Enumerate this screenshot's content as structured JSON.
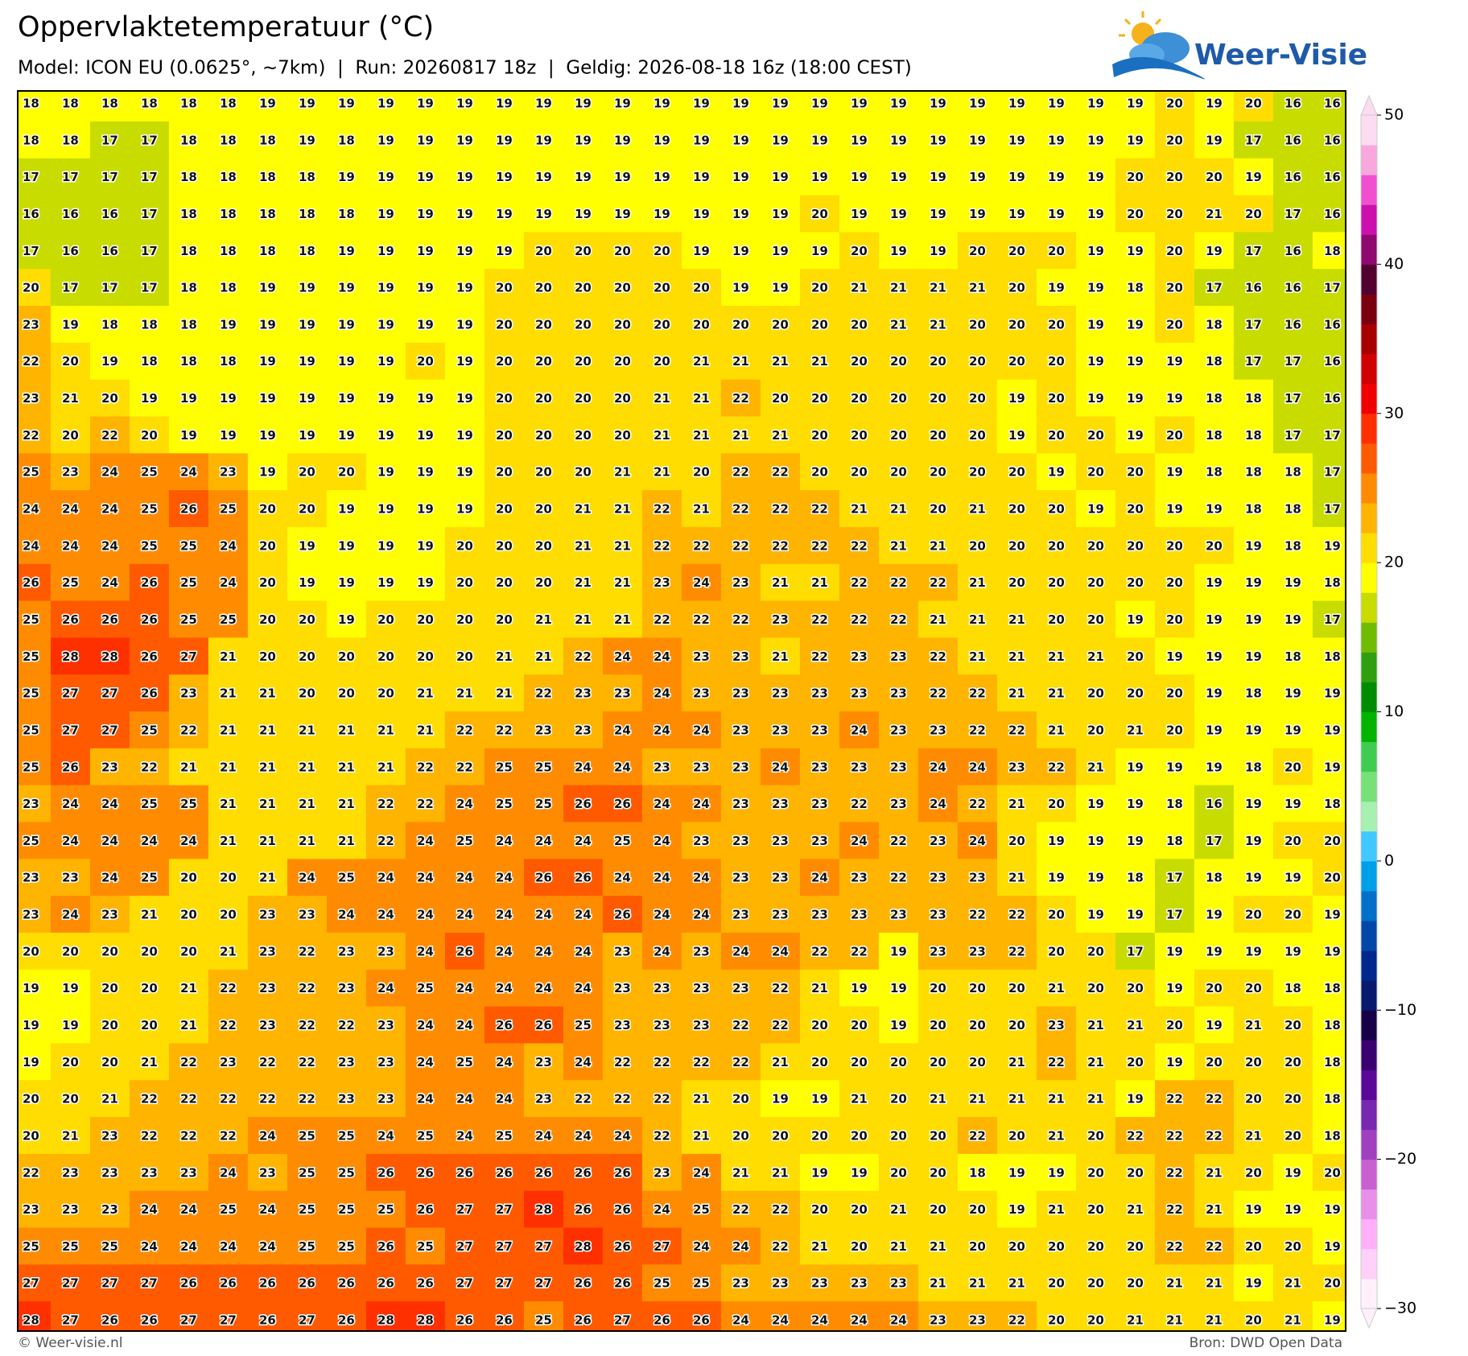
{
  "header": {
    "title": "Oppervlaktetemperatuur (°C)",
    "subtitle": "Model: ICON EU (0.0625°, ~7km)  |  Run: 20260817 18z  |  Geldig: 2026-08-18 16z (18:00 CEST)",
    "logo": "Weer-Visie"
  },
  "map": {
    "rows": [
      [
        18,
        18,
        18,
        18,
        18,
        18,
        19,
        19,
        19,
        19,
        19,
        19,
        19,
        19,
        19,
        19,
        19,
        19,
        19,
        19,
        19,
        19,
        19,
        19,
        19,
        19,
        19,
        19,
        19,
        20,
        19,
        20,
        16,
        16
      ],
      [
        18,
        18,
        17,
        17,
        18,
        18,
        18,
        19,
        18,
        19,
        19,
        19,
        19,
        19,
        19,
        19,
        19,
        19,
        19,
        19,
        19,
        19,
        19,
        19,
        19,
        19,
        19,
        19,
        19,
        20,
        19,
        17,
        16,
        16
      ],
      [
        17,
        17,
        17,
        17,
        18,
        18,
        18,
        18,
        19,
        19,
        19,
        19,
        19,
        19,
        19,
        19,
        19,
        19,
        19,
        19,
        19,
        19,
        19,
        19,
        19,
        19,
        19,
        19,
        20,
        20,
        20,
        19,
        16,
        16
      ],
      [
        16,
        16,
        16,
        17,
        18,
        18,
        18,
        18,
        18,
        19,
        19,
        19,
        19,
        19,
        19,
        19,
        19,
        19,
        19,
        19,
        20,
        19,
        19,
        19,
        19,
        19,
        19,
        19,
        20,
        20,
        21,
        20,
        17,
        16
      ],
      [
        17,
        16,
        16,
        17,
        18,
        18,
        18,
        18,
        19,
        19,
        19,
        19,
        19,
        20,
        20,
        20,
        20,
        19,
        19,
        19,
        19,
        20,
        19,
        19,
        20,
        20,
        20,
        19,
        19,
        20,
        19,
        17,
        16,
        18
      ],
      [
        20,
        17,
        17,
        17,
        18,
        18,
        19,
        19,
        19,
        19,
        19,
        19,
        20,
        20,
        20,
        20,
        20,
        20,
        19,
        19,
        20,
        21,
        21,
        21,
        21,
        20,
        19,
        19,
        18,
        20,
        17,
        16,
        16,
        17
      ],
      [
        23,
        19,
        18,
        18,
        18,
        19,
        19,
        19,
        19,
        19,
        19,
        19,
        20,
        20,
        20,
        20,
        20,
        20,
        20,
        20,
        20,
        20,
        21,
        21,
        20,
        20,
        20,
        19,
        19,
        20,
        18,
        17,
        16,
        16
      ],
      [
        22,
        20,
        19,
        18,
        18,
        18,
        19,
        19,
        19,
        19,
        20,
        19,
        20,
        20,
        20,
        20,
        20,
        21,
        21,
        21,
        21,
        20,
        20,
        20,
        20,
        20,
        20,
        19,
        19,
        19,
        18,
        17,
        17,
        16
      ],
      [
        23,
        21,
        20,
        19,
        19,
        19,
        19,
        19,
        19,
        19,
        19,
        19,
        20,
        20,
        20,
        20,
        21,
        21,
        22,
        20,
        20,
        20,
        20,
        20,
        20,
        19,
        20,
        19,
        19,
        19,
        18,
        18,
        17,
        16
      ],
      [
        22,
        20,
        22,
        20,
        19,
        19,
        19,
        19,
        19,
        19,
        19,
        19,
        20,
        20,
        20,
        20,
        21,
        21,
        21,
        21,
        20,
        20,
        20,
        20,
        20,
        19,
        20,
        20,
        19,
        20,
        18,
        18,
        17,
        17
      ],
      [
        25,
        23,
        24,
        25,
        24,
        23,
        19,
        20,
        20,
        19,
        19,
        19,
        20,
        20,
        20,
        21,
        21,
        20,
        22,
        22,
        20,
        20,
        20,
        20,
        20,
        20,
        19,
        20,
        20,
        19,
        18,
        18,
        18,
        17
      ],
      [
        24,
        24,
        24,
        25,
        26,
        25,
        20,
        20,
        19,
        19,
        19,
        19,
        20,
        20,
        21,
        21,
        22,
        21,
        22,
        22,
        22,
        21,
        21,
        20,
        21,
        20,
        20,
        19,
        20,
        19,
        19,
        18,
        18,
        17
      ],
      [
        24,
        24,
        24,
        25,
        25,
        24,
        20,
        19,
        19,
        19,
        19,
        20,
        20,
        20,
        21,
        21,
        22,
        22,
        22,
        22,
        22,
        22,
        21,
        21,
        20,
        20,
        20,
        20,
        20,
        20,
        20,
        19,
        18,
        19
      ],
      [
        26,
        25,
        24,
        26,
        25,
        24,
        20,
        19,
        19,
        19,
        19,
        20,
        20,
        20,
        21,
        21,
        23,
        24,
        23,
        21,
        21,
        22,
        22,
        22,
        21,
        20,
        20,
        20,
        20,
        20,
        19,
        19,
        19,
        18
      ],
      [
        25,
        26,
        26,
        26,
        25,
        25,
        20,
        20,
        19,
        20,
        20,
        20,
        20,
        21,
        21,
        21,
        22,
        22,
        22,
        23,
        22,
        22,
        22,
        21,
        21,
        21,
        20,
        20,
        19,
        20,
        19,
        19,
        19,
        17
      ],
      [
        25,
        28,
        28,
        26,
        27,
        21,
        20,
        20,
        20,
        20,
        20,
        20,
        21,
        21,
        22,
        24,
        24,
        23,
        23,
        21,
        22,
        23,
        23,
        22,
        21,
        21,
        21,
        21,
        20,
        19,
        19,
        19,
        18,
        18
      ],
      [
        25,
        27,
        27,
        26,
        23,
        21,
        21,
        20,
        20,
        20,
        21,
        21,
        21,
        22,
        23,
        23,
        24,
        23,
        23,
        23,
        23,
        23,
        23,
        22,
        22,
        21,
        21,
        20,
        20,
        20,
        19,
        18,
        19,
        19
      ],
      [
        25,
        27,
        27,
        25,
        22,
        21,
        21,
        21,
        21,
        21,
        21,
        22,
        22,
        23,
        23,
        24,
        24,
        24,
        23,
        23,
        23,
        24,
        23,
        23,
        22,
        22,
        21,
        20,
        21,
        20,
        19,
        19,
        19,
        19
      ],
      [
        25,
        26,
        23,
        22,
        21,
        21,
        21,
        21,
        21,
        21,
        22,
        22,
        25,
        25,
        24,
        24,
        23,
        23,
        23,
        24,
        23,
        23,
        23,
        24,
        24,
        23,
        22,
        21,
        19,
        19,
        19,
        18,
        20,
        19
      ],
      [
        23,
        24,
        24,
        25,
        25,
        21,
        21,
        21,
        21,
        22,
        22,
        24,
        25,
        25,
        26,
        26,
        24,
        24,
        23,
        23,
        23,
        22,
        23,
        24,
        22,
        21,
        20,
        19,
        19,
        18,
        16,
        19,
        19,
        18
      ],
      [
        25,
        24,
        24,
        24,
        24,
        21,
        21,
        21,
        21,
        22,
        24,
        25,
        24,
        24,
        24,
        25,
        24,
        23,
        23,
        23,
        23,
        24,
        22,
        23,
        24,
        20,
        19,
        19,
        19,
        18,
        17,
        19,
        20,
        20
      ],
      [
        23,
        23,
        24,
        25,
        20,
        20,
        21,
        24,
        25,
        24,
        24,
        24,
        24,
        26,
        26,
        24,
        24,
        24,
        23,
        23,
        24,
        23,
        22,
        23,
        23,
        21,
        19,
        19,
        18,
        17,
        18,
        19,
        19,
        20
      ],
      [
        23,
        24,
        23,
        21,
        20,
        20,
        23,
        23,
        24,
        24,
        24,
        24,
        24,
        24,
        24,
        26,
        24,
        24,
        23,
        23,
        23,
        23,
        23,
        23,
        22,
        22,
        20,
        19,
        19,
        17,
        19,
        20,
        20,
        19
      ],
      [
        20,
        20,
        20,
        20,
        20,
        21,
        23,
        22,
        23,
        23,
        24,
        26,
        24,
        24,
        24,
        23,
        24,
        23,
        24,
        24,
        22,
        22,
        19,
        23,
        23,
        22,
        20,
        20,
        17,
        19,
        19,
        19,
        19,
        19
      ],
      [
        19,
        19,
        20,
        20,
        21,
        22,
        23,
        22,
        23,
        24,
        25,
        24,
        24,
        24,
        24,
        23,
        23,
        23,
        23,
        22,
        21,
        19,
        19,
        20,
        20,
        20,
        21,
        20,
        20,
        19,
        20,
        20,
        18,
        18
      ],
      [
        19,
        19,
        20,
        20,
        21,
        22,
        23,
        22,
        22,
        23,
        24,
        24,
        26,
        26,
        25,
        23,
        23,
        23,
        22,
        22,
        20,
        20,
        19,
        20,
        20,
        20,
        23,
        21,
        21,
        20,
        19,
        21,
        20,
        18
      ],
      [
        19,
        20,
        20,
        21,
        22,
        23,
        22,
        22,
        23,
        23,
        24,
        25,
        24,
        23,
        24,
        22,
        22,
        22,
        22,
        21,
        20,
        20,
        20,
        20,
        20,
        21,
        22,
        21,
        20,
        19,
        20,
        20,
        20,
        18
      ],
      [
        20,
        20,
        21,
        22,
        22,
        22,
        22,
        22,
        23,
        23,
        24,
        24,
        24,
        23,
        22,
        22,
        22,
        21,
        20,
        19,
        19,
        21,
        20,
        21,
        21,
        21,
        21,
        21,
        19,
        22,
        22,
        20,
        20,
        18
      ],
      [
        20,
        21,
        23,
        22,
        22,
        22,
        24,
        25,
        25,
        24,
        25,
        24,
        25,
        24,
        24,
        24,
        22,
        21,
        20,
        20,
        20,
        20,
        20,
        20,
        22,
        20,
        21,
        20,
        22,
        22,
        22,
        21,
        20,
        18
      ],
      [
        22,
        23,
        23,
        23,
        23,
        24,
        23,
        25,
        25,
        26,
        26,
        26,
        26,
        26,
        26,
        26,
        23,
        24,
        21,
        21,
        19,
        19,
        20,
        20,
        18,
        19,
        19,
        20,
        20,
        22,
        21,
        20,
        19,
        20
      ],
      [
        23,
        23,
        23,
        24,
        24,
        25,
        24,
        25,
        25,
        25,
        26,
        27,
        27,
        28,
        26,
        26,
        24,
        25,
        22,
        22,
        20,
        20,
        21,
        20,
        20,
        19,
        21,
        20,
        21,
        22,
        21,
        19,
        19,
        19
      ],
      [
        25,
        25,
        25,
        24,
        24,
        24,
        24,
        25,
        25,
        26,
        25,
        27,
        27,
        27,
        28,
        26,
        27,
        24,
        24,
        22,
        21,
        20,
        21,
        21,
        20,
        20,
        20,
        20,
        20,
        22,
        22,
        20,
        20,
        19
      ],
      [
        27,
        27,
        27,
        27,
        26,
        26,
        26,
        26,
        26,
        26,
        26,
        27,
        27,
        27,
        26,
        26,
        25,
        25,
        23,
        23,
        23,
        23,
        23,
        21,
        21,
        21,
        20,
        20,
        20,
        21,
        21,
        19,
        21,
        20
      ],
      [
        28,
        27,
        26,
        26,
        27,
        27,
        26,
        27,
        26,
        28,
        28,
        26,
        26,
        25,
        26,
        27,
        26,
        26,
        24,
        24,
        24,
        24,
        24,
        23,
        23,
        22,
        20,
        20,
        21,
        21,
        21,
        20,
        21,
        19
      ]
    ]
  },
  "colorbar": {
    "lim": [
      -30,
      50
    ],
    "ticks": [
      50,
      40,
      30,
      20,
      10,
      0,
      {
        "value": -10,
        "label": "−10"
      },
      {
        "value": -20,
        "label": "−20"
      },
      {
        "value": -30,
        "label": "−30"
      }
    ],
    "colors": [
      "#fff0fc",
      "#ffd0f8",
      "#ffb0f8",
      "#e890e8",
      "#c860d0",
      "#a040c0",
      "#7828b0",
      "#5a0898",
      "#3a0070",
      "#180048",
      "#081a6e",
      "#00288c",
      "#0048a8",
      "#0070c8",
      "#00a0e8",
      "#40c8ff",
      "#a8f0b0",
      "#78e078",
      "#40cc50",
      "#00b400",
      "#008c00",
      "#30a010",
      "#70bc00",
      "#c8dc00",
      "#ffff00",
      "#ffdd00",
      "#ffb400",
      "#ff8c00",
      "#ff5a00",
      "#ff3000",
      "#f00000",
      "#d00000",
      "#a80000",
      "#7a0010",
      "#520030",
      "#8e0a70",
      "#cc10b0",
      "#f050d0",
      "#f8a8dc",
      "#fcdcf0"
    ]
  },
  "footer": {
    "left": "© Weer-visie.nl",
    "right": "Bron: DWD Open Data"
  }
}
